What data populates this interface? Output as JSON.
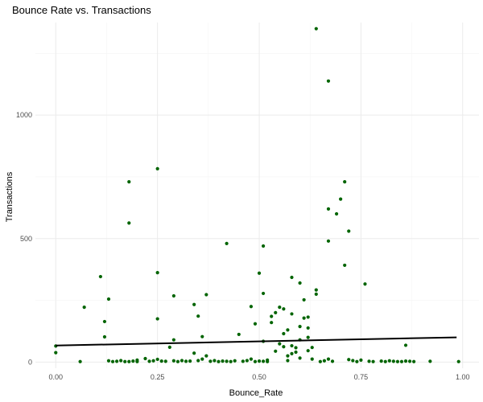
{
  "chart_data": {
    "type": "scatter",
    "title": "Bounce Rate vs. Transactions",
    "xlabel": "Bounce_Rate",
    "ylabel": "Transactions",
    "xlim": [
      -0.05,
      1.04
    ],
    "ylim": [
      -25,
      1375
    ],
    "x_ticks": [
      0,
      0.25,
      0.5,
      0.75,
      1
    ],
    "x_tick_labels": [
      "0.00",
      "0.25",
      "0.50",
      "0.75",
      "1.00"
    ],
    "y_ticks": [
      0,
      500,
      1000
    ],
    "y_tick_labels": [
      "0",
      "500",
      "1000"
    ],
    "grid": true,
    "legend": "none",
    "point_color": "#006400",
    "trend_color": "#000000",
    "trend_line": {
      "x": [
        0,
        0.985
      ],
      "y": [
        67,
        100
      ]
    },
    "points": [
      [
        0,
        65
      ],
      [
        0,
        38
      ],
      [
        0.06,
        2
      ],
      [
        0.07,
        222
      ],
      [
        0.11,
        346
      ],
      [
        0.12,
        164
      ],
      [
        0.12,
        102
      ],
      [
        0.13,
        255
      ],
      [
        0.13,
        5
      ],
      [
        0.14,
        2
      ],
      [
        0.15,
        3
      ],
      [
        0.16,
        6
      ],
      [
        0.17,
        2
      ],
      [
        0.18,
        730
      ],
      [
        0.18,
        563
      ],
      [
        0.18,
        2
      ],
      [
        0.19,
        4
      ],
      [
        0.2,
        2
      ],
      [
        0.2,
        8
      ],
      [
        0.22,
        14
      ],
      [
        0.23,
        3
      ],
      [
        0.24,
        5
      ],
      [
        0.25,
        783
      ],
      [
        0.25,
        362
      ],
      [
        0.25,
        175
      ],
      [
        0.25,
        11
      ],
      [
        0.26,
        4
      ],
      [
        0.27,
        3
      ],
      [
        0.28,
        60
      ],
      [
        0.29,
        268
      ],
      [
        0.29,
        90
      ],
      [
        0.29,
        5
      ],
      [
        0.3,
        2
      ],
      [
        0.31,
        6
      ],
      [
        0.32,
        3
      ],
      [
        0.33,
        4
      ],
      [
        0.34,
        36
      ],
      [
        0.34,
        233
      ],
      [
        0.35,
        186
      ],
      [
        0.35,
        6
      ],
      [
        0.36,
        103
      ],
      [
        0.36,
        12
      ],
      [
        0.37,
        273
      ],
      [
        0.37,
        25
      ],
      [
        0.38,
        3
      ],
      [
        0.39,
        6
      ],
      [
        0.4,
        2
      ],
      [
        0.41,
        4
      ],
      [
        0.42,
        480
      ],
      [
        0.42,
        3
      ],
      [
        0.43,
        2
      ],
      [
        0.44,
        5
      ],
      [
        0.45,
        112
      ],
      [
        0.46,
        3
      ],
      [
        0.47,
        6
      ],
      [
        0.48,
        225
      ],
      [
        0.48,
        12
      ],
      [
        0.49,
        2
      ],
      [
        0.49,
        155
      ],
      [
        0.5,
        360
      ],
      [
        0.5,
        4
      ],
      [
        0.51,
        470
      ],
      [
        0.51,
        278
      ],
      [
        0.51,
        84
      ],
      [
        0.51,
        3
      ],
      [
        0.52,
        2
      ],
      [
        0.52,
        8
      ],
      [
        0.53,
        185
      ],
      [
        0.53,
        160
      ],
      [
        0.54,
        200
      ],
      [
        0.54,
        44
      ],
      [
        0.55,
        222
      ],
      [
        0.55,
        74
      ],
      [
        0.56,
        115
      ],
      [
        0.56,
        215
      ],
      [
        0.56,
        62
      ],
      [
        0.57,
        130
      ],
      [
        0.57,
        25
      ],
      [
        0.57,
        6
      ],
      [
        0.58,
        343
      ],
      [
        0.58,
        195
      ],
      [
        0.58,
        66
      ],
      [
        0.58,
        34
      ],
      [
        0.59,
        58
      ],
      [
        0.59,
        40
      ],
      [
        0.6,
        320
      ],
      [
        0.6,
        144
      ],
      [
        0.6,
        90
      ],
      [
        0.6,
        16
      ],
      [
        0.61,
        252
      ],
      [
        0.61,
        178
      ],
      [
        0.62,
        182
      ],
      [
        0.62,
        138
      ],
      [
        0.62,
        100
      ],
      [
        0.62,
        46
      ],
      [
        0.63,
        59
      ],
      [
        0.63,
        12
      ],
      [
        0.64,
        1350
      ],
      [
        0.64,
        292
      ],
      [
        0.64,
        275
      ],
      [
        0.65,
        2
      ],
      [
        0.66,
        5
      ],
      [
        0.67,
        1138
      ],
      [
        0.67,
        620
      ],
      [
        0.67,
        490
      ],
      [
        0.67,
        12
      ],
      [
        0.68,
        3
      ],
      [
        0.69,
        600
      ],
      [
        0.7,
        660
      ],
      [
        0.71,
        730
      ],
      [
        0.71,
        392
      ],
      [
        0.72,
        530
      ],
      [
        0.72,
        10
      ],
      [
        0.73,
        6
      ],
      [
        0.74,
        2
      ],
      [
        0.75,
        8
      ],
      [
        0.76,
        316
      ],
      [
        0.77,
        3
      ],
      [
        0.78,
        2
      ],
      [
        0.8,
        4
      ],
      [
        0.81,
        2
      ],
      [
        0.82,
        5
      ],
      [
        0.83,
        3
      ],
      [
        0.84,
        2
      ],
      [
        0.85,
        2
      ],
      [
        0.86,
        4
      ],
      [
        0.86,
        68
      ],
      [
        0.87,
        3
      ],
      [
        0.88,
        2
      ],
      [
        0.92,
        3
      ],
      [
        0.99,
        2
      ]
    ]
  }
}
